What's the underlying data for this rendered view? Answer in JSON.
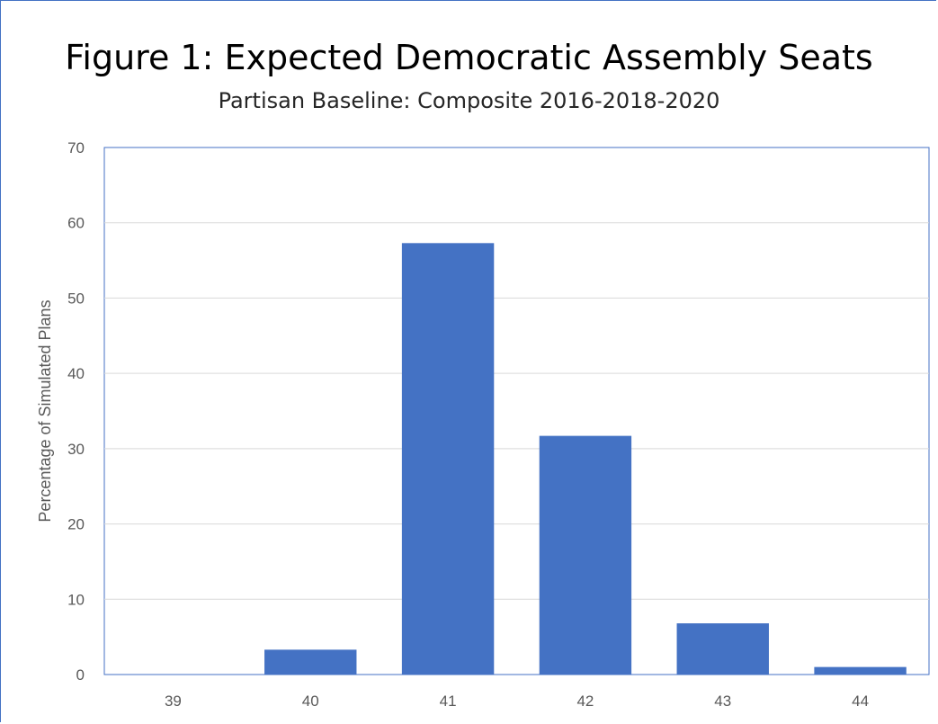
{
  "chart_data": {
    "type": "bar",
    "title": "Figure 1: Expected Democratic Assembly Seats",
    "subtitle": "Partisan Baseline: Composite 2016-2018-2020",
    "xlabel": "",
    "ylabel": "Percentage of Simulated Plans",
    "categories": [
      "39",
      "40",
      "41",
      "42",
      "43",
      "44"
    ],
    "values": [
      0,
      3.3,
      57.3,
      31.7,
      6.8,
      1.0
    ],
    "ylim": [
      0,
      70
    ],
    "yticks": [
      0,
      10,
      20,
      30,
      40,
      50,
      60,
      70
    ],
    "grid": true,
    "bar_color": "#4472c4",
    "grid_color": "#d9d9d9",
    "frame_color": "#4472c4"
  }
}
